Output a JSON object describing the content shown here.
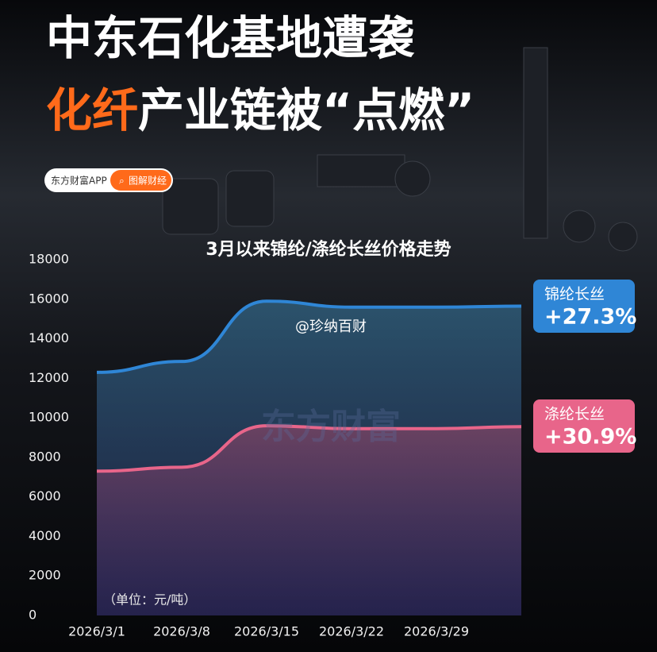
{
  "header": {
    "title_line1": "中东石化基地遭袭",
    "title_line2_highlight": "化纤",
    "title_line2_rest": "产业链被“点燃”",
    "badge_left": "东方财富APP",
    "badge_right": "图解财经"
  },
  "watermarks": [
    "@珍纳百财",
    "东方财富"
  ],
  "chart_data": {
    "type": "line",
    "area": true,
    "title": "3月以来锦纶/涤纶长丝价格走势",
    "unit_label": "（单位：元/吨）",
    "categories": [
      "2026/3/1",
      "2026/3/8",
      "2026/3/15",
      "2026/3/22",
      "2026/3/29",
      null
    ],
    "series": [
      {
        "name": "锦纶长丝",
        "change_label": "+27.3%",
        "color": "#2f86d6",
        "values": [
          12300,
          12850,
          15900,
          15600,
          15600,
          15650
        ]
      },
      {
        "name": "涤纶长丝",
        "change_label": "+30.9%",
        "color": "#e8658a",
        "values": [
          7300,
          7500,
          9600,
          9450,
          9450,
          9550
        ]
      }
    ],
    "ylim": [
      0,
      18000
    ],
    "yticks": [
      0,
      2000,
      4000,
      6000,
      8000,
      10000,
      12000,
      14000,
      16000,
      18000
    ],
    "grid": false
  }
}
